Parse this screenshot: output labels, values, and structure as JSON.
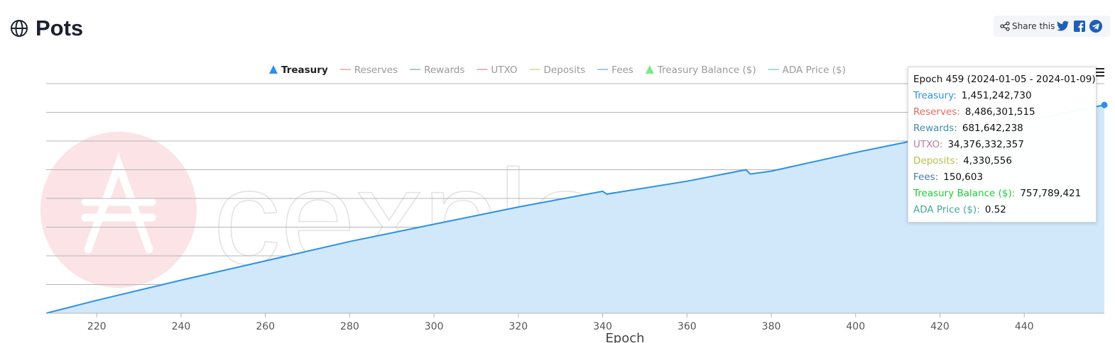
{
  "page": {
    "title": "Pots"
  },
  "share": {
    "label": "Share this",
    "icons": [
      "share-icon",
      "twitter-icon",
      "facebook-icon",
      "telegram-icon"
    ]
  },
  "legend": [
    {
      "label": "Treasury",
      "marker": "triangle",
      "color": "#2b90e8",
      "active": true
    },
    {
      "label": "Reserves",
      "marker": "line",
      "color": "#f4b9b0",
      "active": false
    },
    {
      "label": "Rewards",
      "marker": "line",
      "color": "#a8cbd6",
      "active": false
    },
    {
      "label": "UTXO",
      "marker": "line",
      "color": "#e5b4c9",
      "active": false
    },
    {
      "label": "Deposits",
      "marker": "line",
      "color": "#e4e3ad",
      "active": false
    },
    {
      "label": "Fees",
      "marker": "line",
      "color": "#a9c4e2",
      "active": false
    },
    {
      "label": "Treasury Balance ($)",
      "marker": "triangle",
      "color": "#7de88a",
      "active": false
    },
    {
      "label": "ADA Price ($)",
      "marker": "line",
      "color": "#a7dcd6",
      "active": false
    }
  ],
  "tooltip": {
    "title": "Epoch 459 (2024-01-05 - 2024-01-09)",
    "rows": [
      {
        "label": "Treasury:",
        "value": "1,451,242,730",
        "color": "#2b90e8"
      },
      {
        "label": "Reserves:",
        "value": "8,486,301,515",
        "color": "#e06b5e"
      },
      {
        "label": "Rewards:",
        "value": "681,642,238",
        "color": "#3f8ea6"
      },
      {
        "label": "UTXO:",
        "value": "34,376,332,357",
        "color": "#b87e9c"
      },
      {
        "label": "Deposits:",
        "value": "4,330,556",
        "color": "#b9be4a"
      },
      {
        "label": "Fees:",
        "value": "150,603",
        "color": "#4b7aa6"
      },
      {
        "label": "Treasury Balance ($):",
        "value": "757,789,421",
        "color": "#1ecb3a"
      },
      {
        "label": "ADA Price ($):",
        "value": "0.52",
        "color": "#4aa59a"
      }
    ]
  },
  "watermark": {
    "text": "cexplorer.io"
  },
  "colors": {
    "treasury_line": "#2b90e8",
    "treasury_fill": "#d1e8fb",
    "gridline": "#b5b5b5"
  },
  "chart_data": {
    "type": "area",
    "xlabel": "Epoch",
    "ylabel": "",
    "xlim": [
      208,
      459
    ],
    "xticks": [
      220,
      240,
      260,
      280,
      300,
      320,
      340,
      360,
      380,
      400,
      420,
      440
    ],
    "ylim": [
      0,
      1600000000
    ],
    "yticks_visible": false,
    "gridlines": 8,
    "grid": true,
    "legend_position": "top",
    "series": [
      {
        "name": "Treasury",
        "x": [
          208,
          220,
          240,
          260,
          280,
          300,
          320,
          340,
          341,
          360,
          374,
          375,
          380,
          400,
          410,
          420,
          440,
          459
        ],
        "values": [
          0,
          90000000,
          230000000,
          365000000,
          500000000,
          620000000,
          740000000,
          850000000,
          830000000,
          920000000,
          1000000000,
          970000000,
          990000000,
          1120000000,
          1180000000,
          1240000000,
          1340000000,
          1451242730
        ]
      }
    ]
  }
}
